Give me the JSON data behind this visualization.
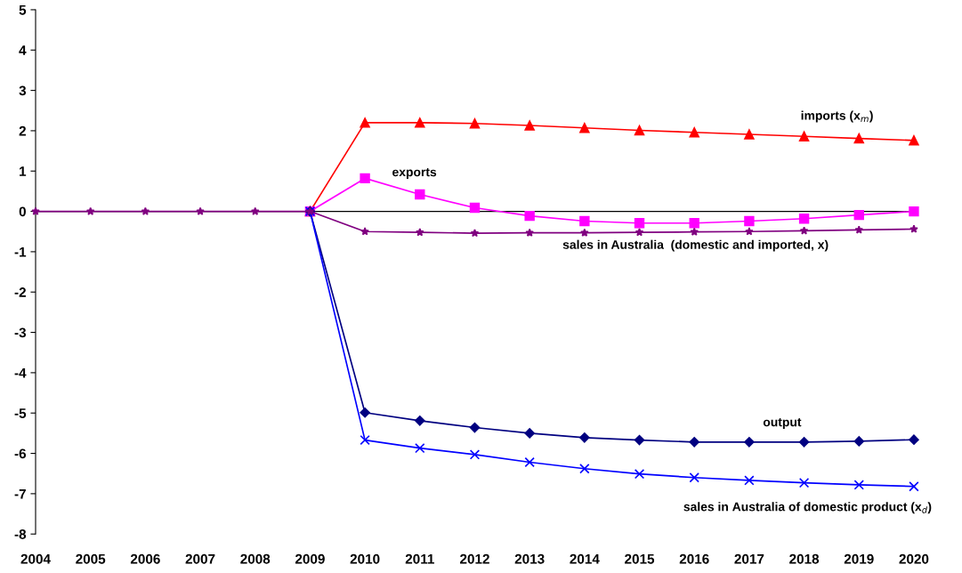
{
  "chart_data": {
    "type": "line",
    "x": [
      2004,
      2005,
      2006,
      2007,
      2008,
      2009,
      2010,
      2011,
      2012,
      2013,
      2014,
      2015,
      2016,
      2017,
      2018,
      2019,
      2020
    ],
    "series": [
      {
        "name": "imports (x$_{m}$)",
        "color": "#ff0000",
        "marker": "triangle",
        "values": [
          null,
          null,
          null,
          null,
          null,
          0,
          2.2,
          2.2,
          2.18,
          2.13,
          2.07,
          2.01,
          1.96,
          1.91,
          1.86,
          1.81,
          1.76
        ]
      },
      {
        "name": "exports",
        "color": "#ff00ff",
        "marker": "square",
        "values": [
          null,
          null,
          null,
          null,
          null,
          0,
          0.82,
          0.42,
          0.09,
          -0.11,
          -0.24,
          -0.29,
          -0.29,
          -0.24,
          -0.18,
          -0.09,
          0
        ]
      },
      {
        "name": "sales in Australia  (domestic and imported, x)",
        "color": "#800080",
        "marker": "star",
        "values": [
          0,
          0,
          0,
          0,
          0,
          0,
          -0.5,
          -0.52,
          -0.54,
          -0.53,
          -0.53,
          -0.52,
          -0.51,
          -0.5,
          -0.48,
          -0.46,
          -0.44
        ]
      },
      {
        "name": "output",
        "color": "#000080",
        "marker": "diamond",
        "values": [
          null,
          null,
          null,
          null,
          null,
          0,
          -4.99,
          -5.19,
          -5.36,
          -5.5,
          -5.61,
          -5.67,
          -5.72,
          -5.72,
          -5.72,
          -5.7,
          -5.66
        ]
      },
      {
        "name": "sales in Australia of domestic product (x$_{d}$)",
        "color": "#0000ff",
        "marker": "cross",
        "values": [
          null,
          null,
          null,
          null,
          null,
          0,
          -5.67,
          -5.87,
          -6.03,
          -6.22,
          -6.38,
          -6.51,
          -6.6,
          -6.67,
          -6.73,
          -6.78,
          -6.82
        ]
      }
    ],
    "xlim": [
      2004,
      2020
    ],
    "xticks": [
      2004,
      2005,
      2006,
      2007,
      2008,
      2009,
      2010,
      2011,
      2012,
      2013,
      2014,
      2015,
      2016,
      2017,
      2018,
      2019,
      2020
    ],
    "ylim": [
      -8,
      5
    ],
    "yticks": [
      -8,
      -7,
      -6,
      -5,
      -4,
      -3,
      -2,
      -1,
      0,
      1,
      2,
      3,
      4,
      5
    ],
    "ref_lines": [
      {
        "axis": "y",
        "value": 0,
        "color": "#000000"
      }
    ],
    "grid": false,
    "legend": false
  }
}
